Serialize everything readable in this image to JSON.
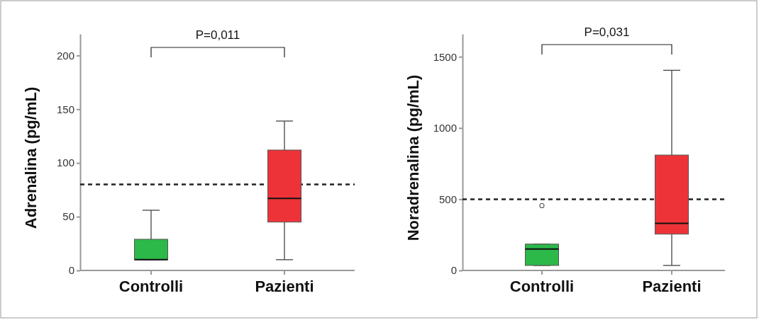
{
  "chart_data": [
    {
      "type": "box",
      "ylabel": "Adrenalina (pg/mL)",
      "categories": [
        "Controlli",
        "Pazienti"
      ],
      "colors": [
        "#2db84a",
        "#ee3338"
      ],
      "ylim": [
        0,
        220
      ],
      "yticks": [
        0,
        50,
        100,
        150,
        200
      ],
      "grid": false,
      "boxes": [
        {
          "low": 10,
          "q1": 10,
          "median": 10,
          "q3": 29,
          "high": 56
        },
        {
          "low": 10,
          "q1": 45,
          "median": 67,
          "q3": 112,
          "high": 139
        }
      ],
      "ref_lines": [
        {
          "axis": "y",
          "value": 80,
          "color": "#222222",
          "line_style": "dashed"
        }
      ],
      "annotations": [
        "P=0,011"
      ]
    },
    {
      "type": "box",
      "ylabel": "Noradrenalina (pg/mL)",
      "categories": [
        "Controlli",
        "Pazienti"
      ],
      "colors": [
        "#2db84a",
        "#ee3338"
      ],
      "ylim": [
        0,
        1660
      ],
      "yticks": [
        0,
        500,
        1000,
        1500
      ],
      "grid": false,
      "boxes": [
        {
          "low": 35,
          "q1": 35,
          "median": 150,
          "q3": 185,
          "high": 185,
          "outliers": [
            455
          ]
        },
        {
          "low": 35,
          "q1": 255,
          "median": 330,
          "q3": 810,
          "high": 1405
        }
      ],
      "ref_lines": [
        {
          "axis": "y",
          "value": 500,
          "color": "#222222",
          "line_style": "dashed"
        }
      ],
      "annotations": [
        "P=0,031"
      ]
    }
  ]
}
